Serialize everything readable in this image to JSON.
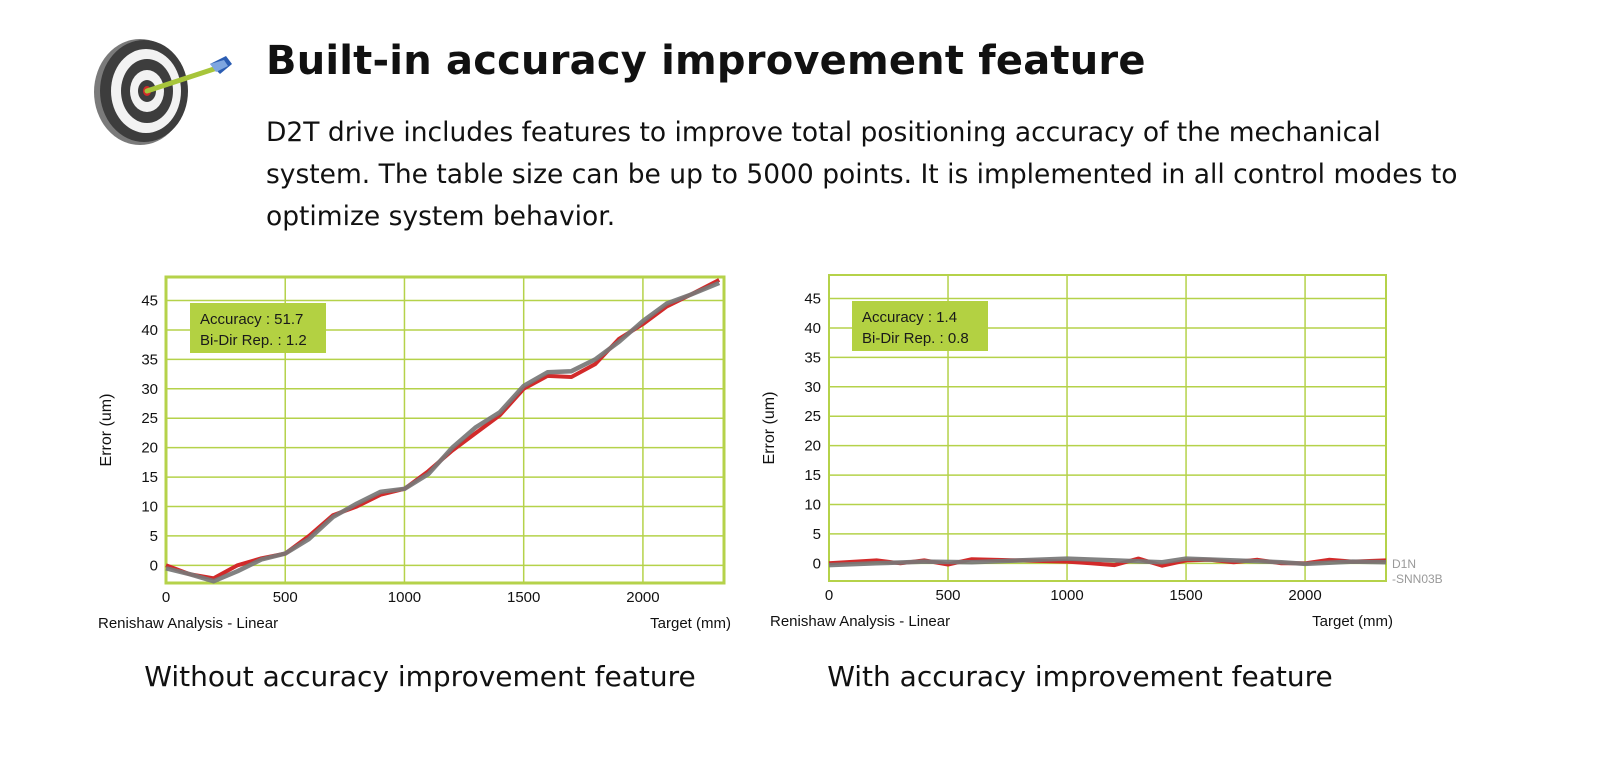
{
  "header": {
    "title": "Built-in accuracy improvement feature",
    "description": "D2T drive includes features to improve total positioning accuracy of the mechanical system. The table size can be up to 5000 points. It is implemented in all control modes to optimize system behavior."
  },
  "logo": {
    "icon": "target-with-arrow-icon"
  },
  "colors": {
    "grid": "#b5d24a",
    "accent_box": "#b3d142",
    "series_red": "#d22a2a",
    "series_gray": "#777777",
    "code_text": "#999999"
  },
  "captions": {
    "left": "Without accuracy improvement feature",
    "right": "With accuracy improvement feature"
  },
  "figure_code": {
    "line1": "D1N",
    "line2": "-SNN03B"
  },
  "chart_data": [
    {
      "type": "line",
      "ylabel": "Error (um)",
      "xlabel": "Target (mm)",
      "footer_label": "Renishaw Analysis - Linear",
      "annotation": {
        "line1": "Accuracy : 51.7",
        "line2": "Bi-Dir Rep. : 1.2"
      },
      "xlim": [
        0,
        2340
      ],
      "ylim": [
        -3,
        49
      ],
      "x_ticks": [
        0,
        500,
        1000,
        1500,
        2000
      ],
      "y_ticks": [
        0,
        5,
        10,
        15,
        20,
        25,
        30,
        35,
        40,
        45
      ],
      "grid": true,
      "series": [
        {
          "color": "#d22a2a",
          "points": [
            [
              0,
              0
            ],
            [
              100,
              -1.5
            ],
            [
              200,
              -2.2
            ],
            [
              300,
              0
            ],
            [
              400,
              1.2
            ],
            [
              500,
              2
            ],
            [
              600,
              5
            ],
            [
              700,
              8.5
            ],
            [
              800,
              10
            ],
            [
              900,
              12
            ],
            [
              1000,
              13
            ],
            [
              1100,
              16
            ],
            [
              1200,
              19.5
            ],
            [
              1300,
              22.5
            ],
            [
              1400,
              25.5
            ],
            [
              1500,
              30
            ],
            [
              1600,
              32.2
            ],
            [
              1700,
              32
            ],
            [
              1800,
              34.2
            ],
            [
              1900,
              38.5
            ],
            [
              2000,
              41
            ],
            [
              2100,
              44
            ],
            [
              2200,
              46
            ],
            [
              2320,
              48.5
            ]
          ]
        },
        {
          "color": "#777777",
          "points": [
            [
              0,
              -0.5
            ],
            [
              100,
              -1.5
            ],
            [
              200,
              -2.7
            ],
            [
              300,
              -1
            ],
            [
              400,
              1
            ],
            [
              500,
              2
            ],
            [
              600,
              4.5
            ],
            [
              700,
              8.2
            ],
            [
              800,
              10.5
            ],
            [
              900,
              12.5
            ],
            [
              1000,
              13
            ],
            [
              1100,
              15.5
            ],
            [
              1200,
              20
            ],
            [
              1300,
              23.5
            ],
            [
              1400,
              26
            ],
            [
              1500,
              30.5
            ],
            [
              1600,
              32.8
            ],
            [
              1700,
              33
            ],
            [
              1800,
              35
            ],
            [
              1900,
              38
            ],
            [
              2000,
              41.5
            ],
            [
              2100,
              44.5
            ],
            [
              2200,
              46
            ],
            [
              2320,
              48
            ]
          ]
        }
      ]
    },
    {
      "type": "line",
      "ylabel": "Error (um)",
      "xlabel": "Target (mm)",
      "footer_label": "Renishaw Analysis - Linear",
      "annotation": {
        "line1": "Accuracy : 1.4",
        "line2": "Bi-Dir Rep. : 0.8"
      },
      "xlim": [
        0,
        2340
      ],
      "ylim": [
        -3,
        49
      ],
      "x_ticks": [
        0,
        500,
        1000,
        1500,
        2000
      ],
      "y_ticks": [
        0,
        5,
        10,
        15,
        20,
        25,
        30,
        35,
        40,
        45
      ],
      "grid": true,
      "series": [
        {
          "color": "#d22a2a",
          "points": [
            [
              0,
              0
            ],
            [
              200,
              0.5
            ],
            [
              300,
              0
            ],
            [
              400,
              0.5
            ],
            [
              500,
              -0.2
            ],
            [
              600,
              0.7
            ],
            [
              800,
              0.5
            ],
            [
              1000,
              0.3
            ],
            [
              1100,
              0
            ],
            [
              1200,
              -0.3
            ],
            [
              1300,
              0.8
            ],
            [
              1400,
              -0.4
            ],
            [
              1500,
              0.5
            ],
            [
              1600,
              0.6
            ],
            [
              1700,
              0.2
            ],
            [
              1800,
              0.6
            ],
            [
              1900,
              0
            ],
            [
              2000,
              0
            ],
            [
              2100,
              0.6
            ],
            [
              2200,
              0.3
            ],
            [
              2340,
              0.5
            ]
          ]
        },
        {
          "color": "#777777",
          "points": [
            [
              0,
              -0.3
            ],
            [
              200,
              0
            ],
            [
              400,
              0.3
            ],
            [
              600,
              0.2
            ],
            [
              800,
              0.5
            ],
            [
              1000,
              0.8
            ],
            [
              1200,
              0.5
            ],
            [
              1400,
              0.2
            ],
            [
              1500,
              0.8
            ],
            [
              1700,
              0.5
            ],
            [
              1900,
              0.2
            ],
            [
              2000,
              -0.1
            ],
            [
              2200,
              0.3
            ],
            [
              2340,
              0.2
            ]
          ]
        }
      ]
    }
  ]
}
